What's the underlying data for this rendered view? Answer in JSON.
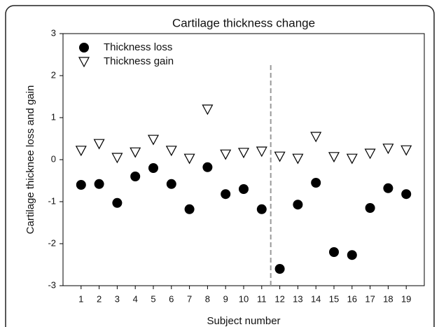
{
  "chart_data": {
    "type": "scatter",
    "title": "Cartilage thickness change",
    "xlabel": "Subject number",
    "ylabel": "Cartilage thicknee loss and gain",
    "x": [
      1,
      2,
      3,
      4,
      5,
      6,
      7,
      8,
      9,
      10,
      11,
      12,
      13,
      14,
      15,
      16,
      17,
      18,
      19
    ],
    "series": [
      {
        "name": "Thickness loss",
        "marker": "circle",
        "color": "#000000",
        "values": [
          -0.6,
          -0.58,
          -1.03,
          -0.4,
          -0.2,
          -0.58,
          -1.18,
          -0.18,
          -0.82,
          -0.7,
          -1.18,
          -2.6,
          -1.07,
          -0.55,
          -2.2,
          -2.27,
          -1.15,
          -0.68,
          -0.82
        ]
      },
      {
        "name": "Thickness gain",
        "marker": "triangle-down",
        "color": "#000000",
        "values": [
          0.22,
          0.38,
          0.05,
          0.18,
          0.48,
          0.22,
          0.03,
          1.2,
          0.13,
          0.17,
          0.2,
          0.08,
          0.03,
          0.55,
          0.07,
          0.03,
          0.15,
          0.27,
          0.23
        ]
      }
    ],
    "xlim": [
      0,
      20
    ],
    "xticks": [
      1,
      2,
      3,
      4,
      5,
      6,
      7,
      8,
      9,
      10,
      11,
      12,
      13,
      14,
      15,
      16,
      17,
      18,
      19
    ],
    "ylim": [
      -3,
      3
    ],
    "yticks": [
      -3,
      -2,
      -1,
      0,
      1,
      2,
      3
    ],
    "reference_line": {
      "x": 11.5,
      "color": "#999999",
      "style": "dashed"
    },
    "legend": "upper left",
    "grid": false
  }
}
